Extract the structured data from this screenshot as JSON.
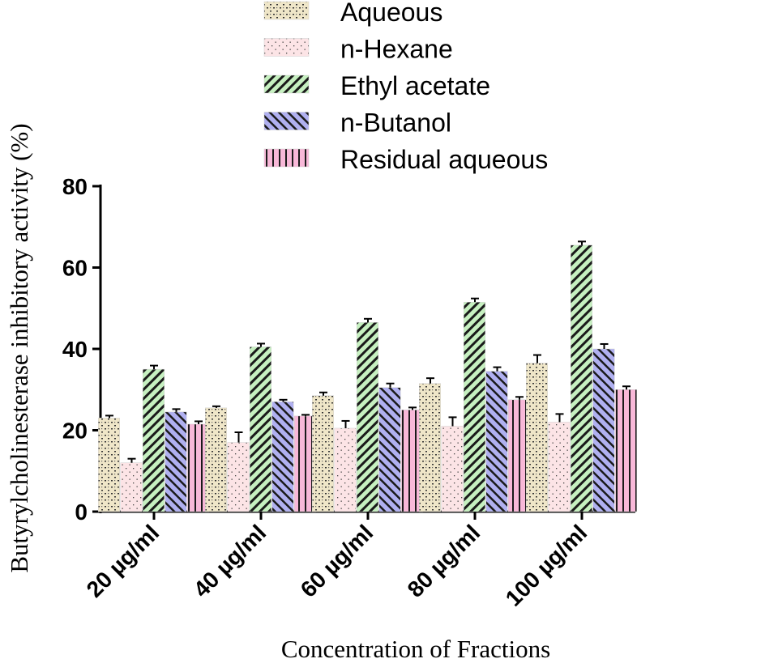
{
  "chart_data": {
    "type": "bar",
    "title": "",
    "xlabel": "Concentration of Fractions",
    "ylabel": "Butyrylcholinesterase inhibitory activity (%)",
    "ylim": [
      0,
      80
    ],
    "yticks": [
      0,
      20,
      40,
      60,
      80
    ],
    "categories": [
      "20 µg/ml",
      "40 µg/ml",
      "60 µg/ml",
      "80 µg/ml",
      "100 µg/ml"
    ],
    "series": [
      {
        "name": "Aqueous",
        "color": "#efe6c8",
        "pattern": "dots-dark",
        "values": [
          23,
          25.5,
          28.5,
          31.5,
          36.5
        ],
        "errors": [
          0.6,
          0.4,
          0.8,
          1.3,
          2.0
        ]
      },
      {
        "name": "n-Hexane",
        "color": "#fce4e6",
        "pattern": "dots-light",
        "values": [
          12,
          17,
          20.5,
          21,
          22
        ],
        "errors": [
          1.0,
          2.5,
          1.8,
          2.2,
          2.0
        ]
      },
      {
        "name": "Ethyl acetate",
        "color": "#c6f0c0",
        "pattern": "diag-down",
        "values": [
          35,
          40.5,
          46.5,
          51.5,
          65.5
        ],
        "errors": [
          0.9,
          0.8,
          0.9,
          0.9,
          0.9
        ]
      },
      {
        "name": "n-Butanol",
        "color": "#b0b0f0",
        "pattern": "diag-up",
        "values": [
          24.5,
          27,
          30.5,
          34.5,
          40
        ],
        "errors": [
          0.7,
          0.5,
          1.0,
          1.0,
          1.2
        ]
      },
      {
        "name": "Residual aqueous",
        "color": "#f8b8d8",
        "pattern": "vertical",
        "values": [
          21.5,
          23.5,
          25,
          27.5,
          30
        ],
        "errors": [
          0.7,
          0.3,
          0.6,
          0.7,
          0.8
        ]
      }
    ],
    "legend_position": "top-center"
  }
}
